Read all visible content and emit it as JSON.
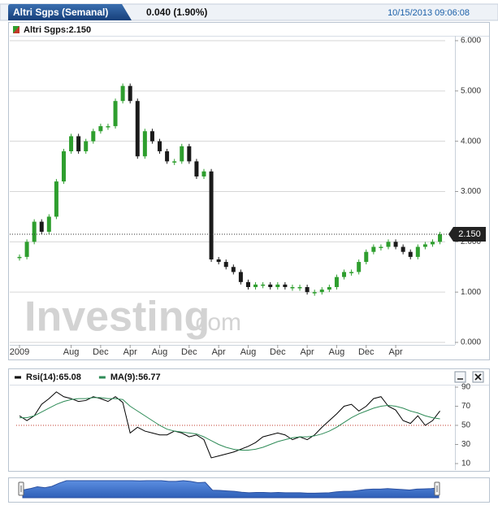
{
  "chart_data": [
    {
      "type": "candlestick",
      "title": "Altri Sgps (Semanal)",
      "change": "0.040 (1.90%)",
      "timestamp": "10/15/2013 09:06:08",
      "legend": "Altri Sgps:2.150",
      "last_label": {
        "value": 2.15,
        "label": "2.150"
      },
      "watermark": [
        "Investing",
        ".com"
      ],
      "categories": [
        "2009",
        null,
        null,
        null,
        null,
        null,
        null,
        "Aug",
        null,
        null,
        null,
        "Dec",
        null,
        null,
        null,
        "Apr",
        null,
        null,
        null,
        "Aug",
        null,
        null,
        null,
        "Dec",
        null,
        null,
        null,
        "Apr",
        null,
        null,
        null,
        "Aug",
        null,
        null,
        null,
        "Dec",
        null,
        null,
        null,
        "Apr",
        null,
        null,
        null,
        "Aug",
        null,
        null,
        null,
        "Dec",
        null,
        null,
        null,
        "Apr",
        null,
        null,
        null,
        null,
        null,
        null
      ],
      "values": [
        1.7,
        2.0,
        2.4,
        2.2,
        2.5,
        3.2,
        3.8,
        4.1,
        3.8,
        4.0,
        4.2,
        4.3,
        4.3,
        4.8,
        5.1,
        4.8,
        3.7,
        4.2,
        4.0,
        3.8,
        3.6,
        3.6,
        3.9,
        3.6,
        3.3,
        3.4,
        1.65,
        1.6,
        1.5,
        1.4,
        1.2,
        1.1,
        1.15,
        1.15,
        1.1,
        1.15,
        1.1,
        1.1,
        1.1,
        1.0,
        1.0,
        1.05,
        1.1,
        1.3,
        1.4,
        1.4,
        1.6,
        1.8,
        1.9,
        1.9,
        2.0,
        1.9,
        1.8,
        1.7,
        1.9,
        1.95,
        2.0,
        2.15
      ],
      "up_color": "#2e9e2e",
      "down_color": "#1a1a1a",
      "ylim": [
        0,
        6
      ],
      "yticks": [
        {
          "value": 0,
          "label": "0.000"
        },
        {
          "value": 1,
          "label": "1.000"
        },
        {
          "value": 2,
          "label": "2.000"
        },
        {
          "value": 3,
          "label": "3.000"
        },
        {
          "value": 4,
          "label": "4.000"
        },
        {
          "value": 5,
          "label": "5.000"
        },
        {
          "value": 6,
          "label": "6.000"
        }
      ],
      "grid": true
    },
    {
      "type": "line",
      "series": [
        {
          "name": "Rsi(14):65.08",
          "color": "#000000",
          "values": [
            60,
            55,
            60,
            72,
            78,
            85,
            80,
            78,
            75,
            76,
            80,
            78,
            75,
            80,
            74,
            42,
            48,
            44,
            42,
            40,
            40,
            44,
            42,
            38,
            40,
            35,
            16,
            18,
            20,
            22,
            25,
            28,
            32,
            38,
            40,
            42,
            40,
            35,
            38,
            35,
            40,
            48,
            55,
            62,
            70,
            72,
            65,
            70,
            78,
            80,
            70,
            66,
            55,
            52,
            60,
            50,
            55,
            65.08
          ]
        },
        {
          "name": "MA(9):56.77",
          "color": "#2e8b57",
          "values": [
            58,
            58,
            60,
            64,
            68,
            72,
            75,
            77,
            78,
            78,
            79,
            79,
            78,
            78,
            77,
            70,
            65,
            60,
            55,
            50,
            46,
            44,
            43,
            42,
            41,
            38,
            34,
            30,
            27,
            25,
            24,
            24,
            25,
            27,
            30,
            33,
            35,
            37,
            38,
            38,
            39,
            41,
            44,
            48,
            53,
            58,
            62,
            65,
            68,
            70,
            71,
            70,
            68,
            65,
            63,
            60,
            58,
            56.77
          ]
        }
      ],
      "reference": 50,
      "ylim": [
        10,
        90
      ],
      "yticks": [
        10,
        30,
        50,
        70,
        90
      ]
    }
  ]
}
